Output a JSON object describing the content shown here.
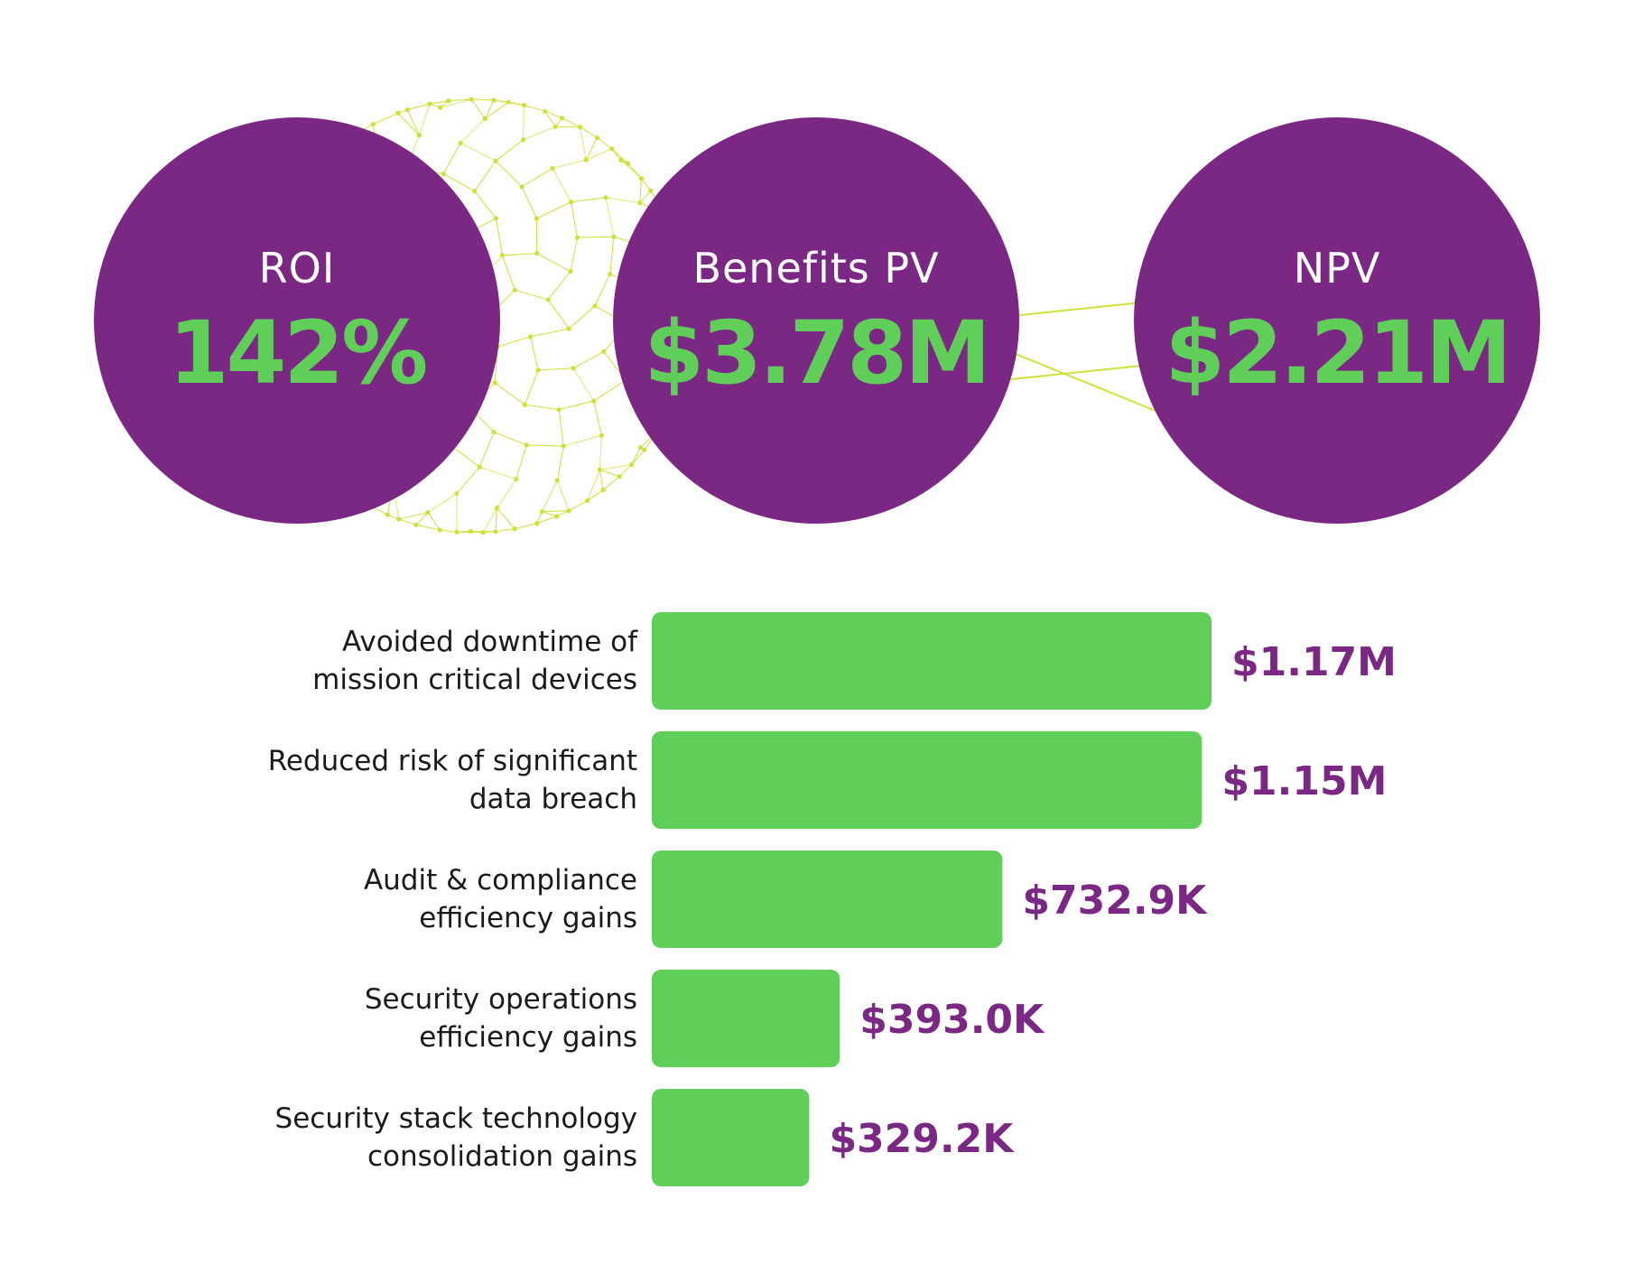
{
  "metrics": [
    {
      "label": "ROI",
      "value": "142%"
    },
    {
      "label": "Benefits PV",
      "value": "$3.78M"
    },
    {
      "label": "NPV",
      "value": "$2.21M"
    }
  ],
  "colors": {
    "purple": "#7a2883",
    "green": "#5fcf5a",
    "mesh": "#cfe03a"
  },
  "chart_data": {
    "type": "bar",
    "orientation": "horizontal",
    "categories": [
      [
        "Avoided downtime of",
        "mission critical devices"
      ],
      [
        "Reduced risk of significant",
        "data breach"
      ],
      [
        "Audit & compliance",
        "efficiency gains"
      ],
      [
        "Security operations",
        "efficiency gains"
      ],
      [
        "Security stack technology",
        "consolidation gains"
      ]
    ],
    "values": [
      1.17,
      1.15,
      0.7329,
      0.393,
      0.3292
    ],
    "value_labels": [
      "$1.17M",
      "$1.15M",
      "$732.9K",
      "$393.0K",
      "$329.2K"
    ],
    "unit": "$M",
    "title": "",
    "xlabel": "",
    "ylabel": "",
    "grid": false,
    "legend": "none"
  }
}
